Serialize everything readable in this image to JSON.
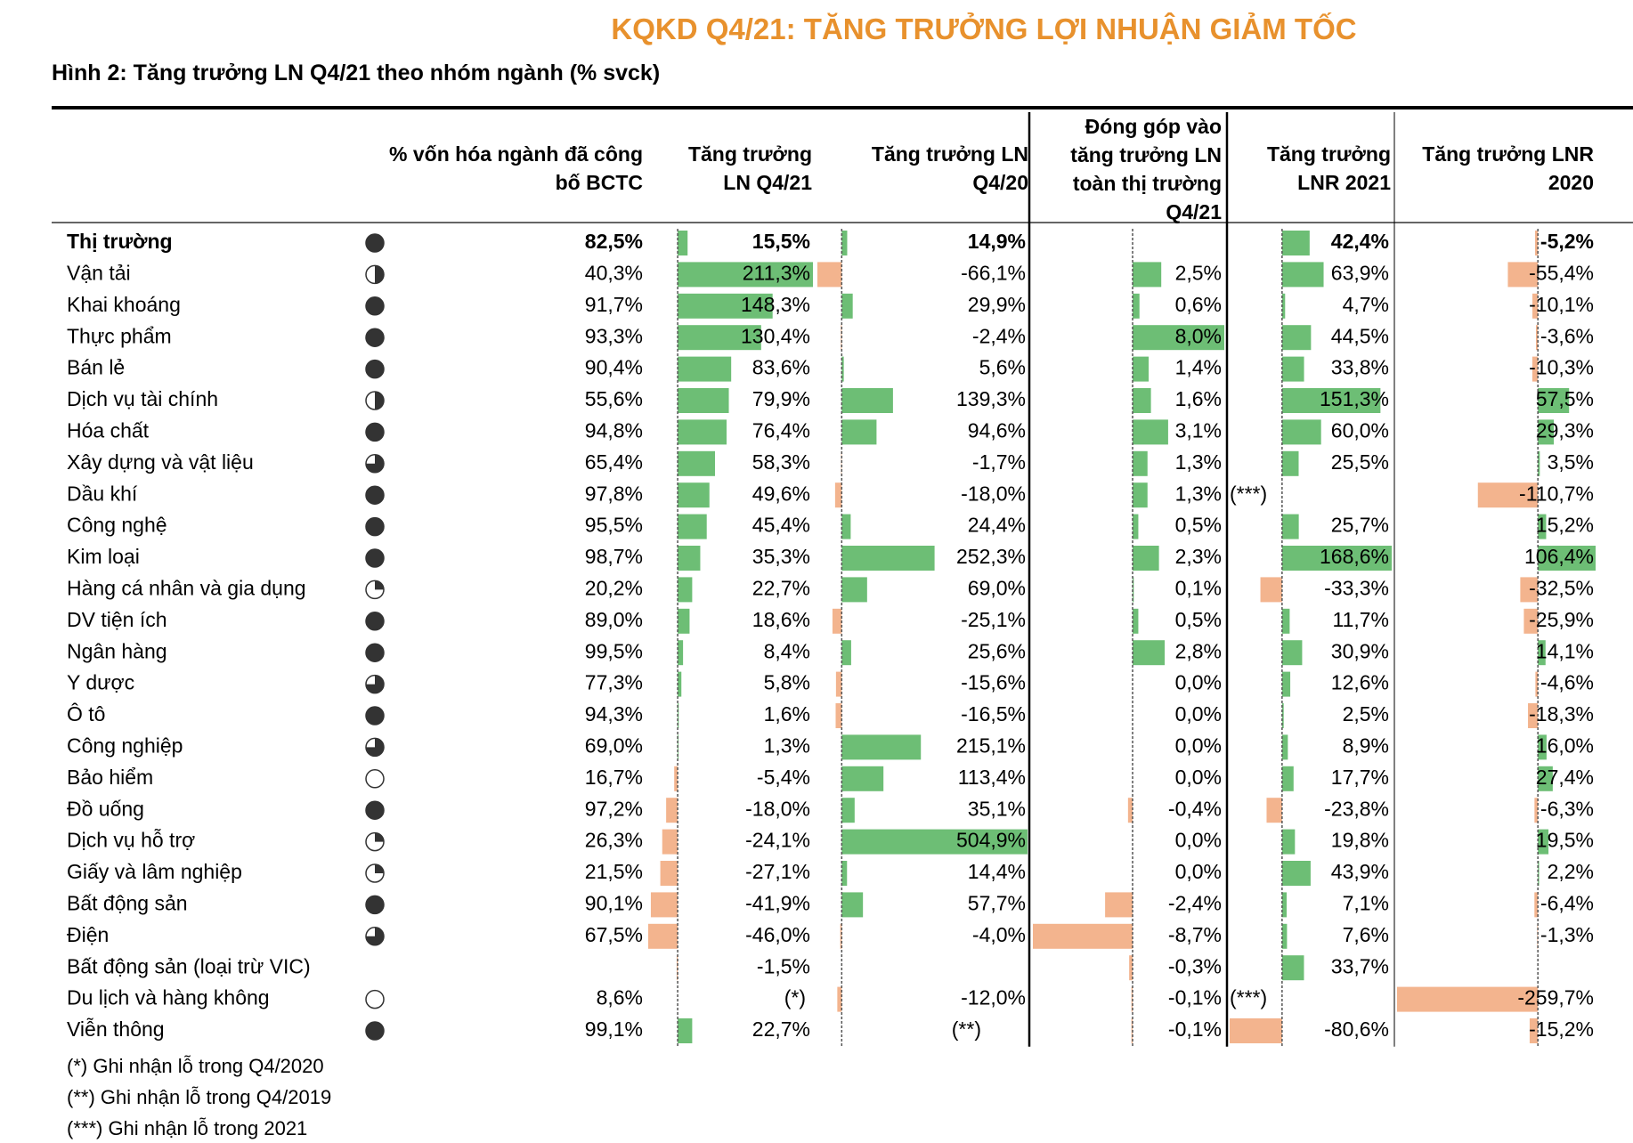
{
  "header": {
    "title": "KQKD Q4/21: TĂNG TRƯỞNG LỢI NHUẬN GIẢM TỐC",
    "subtitle": "Hình 2: Tăng trưởng LN Q4/21 theo nhóm ngành (% svck)"
  },
  "table": {
    "columns": [
      {
        "col": 1,
        "label": "% vốn hóa ngành đã công bố BCTC"
      },
      {
        "col": 2,
        "label": "Tăng trưởng LN Q4/21"
      },
      {
        "col": 3,
        "label": "Tăng trưởng LN Q4/20"
      },
      {
        "col": 4,
        "label": "Đóng góp vào tăng trưởng LN toàn thị trường Q4/21"
      },
      {
        "col": 5,
        "label": "Tăng trưởng LNR 2021"
      },
      {
        "col": 6,
        "label": "Tăng trưởng LNR 2020"
      }
    ],
    "rows": [
      [
        "Thị trường",
        {
          "value": 82.5,
          "label": "82,5%"
        },
        {
          "value": 15.5,
          "label": "15,5%"
        },
        {
          "value": 14.9,
          "label": "14,9%"
        },
        null,
        {
          "value": 42.4,
          "label": "42,4%"
        },
        {
          "value": -5.2,
          "label": "-5,2%"
        }
      ],
      [
        "Vận tải",
        {
          "value": 40.3,
          "label": "40,3%"
        },
        {
          "value": 211.3,
          "label": "211,3%"
        },
        {
          "value": -66.1,
          "label": "-66,1%"
        },
        {
          "value": 2.5,
          "label": "2,5%"
        },
        {
          "value": 63.9,
          "label": "63,9%"
        },
        {
          "value": -55.4,
          "label": "-55,4%"
        }
      ],
      [
        "Khai khoáng",
        {
          "value": 91.7,
          "label": "91,7%"
        },
        {
          "value": 148.3,
          "label": "148,3%"
        },
        {
          "value": 29.9,
          "label": "29,9%"
        },
        {
          "value": 0.6,
          "label": "0,6%"
        },
        {
          "value": 4.7,
          "label": "4,7%"
        },
        {
          "value": -10.1,
          "label": "-10,1%"
        }
      ],
      [
        "Thực phẩm",
        {
          "value": 93.3,
          "label": "93,3%"
        },
        {
          "value": 130.4,
          "label": "130,4%"
        },
        {
          "value": -2.4,
          "label": "-2,4%"
        },
        {
          "value": 8.0,
          "label": "8,0%"
        },
        {
          "value": 44.5,
          "label": "44,5%"
        },
        {
          "value": -3.6,
          "label": "-3,6%"
        }
      ],
      [
        "Bán lẻ",
        {
          "value": 90.4,
          "label": "90,4%"
        },
        {
          "value": 83.6,
          "label": "83,6%"
        },
        {
          "value": 5.6,
          "label": "5,6%"
        },
        {
          "value": 1.4,
          "label": "1,4%"
        },
        {
          "value": 33.8,
          "label": "33,8%"
        },
        {
          "value": -10.3,
          "label": "-10,3%"
        }
      ],
      [
        "Dịch vụ tài chính",
        {
          "value": 55.6,
          "label": "55,6%"
        },
        {
          "value": 79.9,
          "label": "79,9%"
        },
        {
          "value": 139.3,
          "label": "139,3%"
        },
        {
          "value": 1.6,
          "label": "1,6%"
        },
        {
          "value": 151.3,
          "label": "151,3%"
        },
        {
          "value": 57.5,
          "label": "57,5%"
        }
      ],
      [
        "Hóa chất",
        {
          "value": 94.8,
          "label": "94,8%"
        },
        {
          "value": 76.4,
          "label": "76,4%"
        },
        {
          "value": 94.6,
          "label": "94,6%"
        },
        {
          "value": 3.1,
          "label": "3,1%"
        },
        {
          "value": 60.0,
          "label": "60,0%"
        },
        {
          "value": 29.3,
          "label": "29,3%"
        }
      ],
      [
        "Xây dựng và vật liệu",
        {
          "value": 65.4,
          "label": "65,4%"
        },
        {
          "value": 58.3,
          "label": "58,3%"
        },
        {
          "value": -1.7,
          "label": "-1,7%"
        },
        {
          "value": 1.3,
          "label": "1,3%"
        },
        {
          "value": 25.5,
          "label": "25,5%"
        },
        {
          "value": 3.5,
          "label": "3,5%"
        }
      ],
      [
        "Dầu khí",
        {
          "value": 97.8,
          "label": "97,8%"
        },
        {
          "value": 49.6,
          "label": "49,6%"
        },
        {
          "value": -18.0,
          "label": "-18,0%"
        },
        {
          "value": 1.3,
          "label": "1,3%"
        },
        "(***)",
        {
          "value": -110.7,
          "label": "-110,7%"
        }
      ],
      [
        "Công nghệ",
        {
          "value": 95.5,
          "label": "95,5%"
        },
        {
          "value": 45.4,
          "label": "45,4%"
        },
        {
          "value": 24.4,
          "label": "24,4%"
        },
        {
          "value": 0.5,
          "label": "0,5%"
        },
        {
          "value": 25.7,
          "label": "25,7%"
        },
        {
          "value": 15.2,
          "label": "15,2%"
        }
      ],
      [
        "Kim loại",
        {
          "value": 98.7,
          "label": "98,7%"
        },
        {
          "value": 35.3,
          "label": "35,3%"
        },
        {
          "value": 252.3,
          "label": "252,3%"
        },
        {
          "value": 2.3,
          "label": "2,3%"
        },
        {
          "value": 168.6,
          "label": "168,6%"
        },
        {
          "value": 106.4,
          "label": "106,4%"
        }
      ],
      [
        "Hàng cá nhân và gia dụng",
        {
          "value": 20.2,
          "label": "20,2%"
        },
        {
          "value": 22.7,
          "label": "22,7%"
        },
        {
          "value": 69.0,
          "label": "69,0%"
        },
        {
          "value": 0.1,
          "label": "0,1%"
        },
        {
          "value": -33.3,
          "label": "-33,3%"
        },
        {
          "value": -32.5,
          "label": "-32,5%"
        }
      ],
      [
        "DV tiện ích",
        {
          "value": 89.0,
          "label": "89,0%"
        },
        {
          "value": 18.6,
          "label": "18,6%"
        },
        {
          "value": -25.1,
          "label": "-25,1%"
        },
        {
          "value": 0.5,
          "label": "0,5%"
        },
        {
          "value": 11.7,
          "label": "11,7%"
        },
        {
          "value": -25.9,
          "label": "-25,9%"
        }
      ],
      [
        "Ngân hàng",
        {
          "value": 99.5,
          "label": "99,5%"
        },
        {
          "value": 8.4,
          "label": "8,4%"
        },
        {
          "value": 25.6,
          "label": "25,6%"
        },
        {
          "value": 2.8,
          "label": "2,8%"
        },
        {
          "value": 30.9,
          "label": "30,9%"
        },
        {
          "value": 14.1,
          "label": "14,1%"
        }
      ],
      [
        "Y dược",
        {
          "value": 77.3,
          "label": "77,3%"
        },
        {
          "value": 5.8,
          "label": "5,8%"
        },
        {
          "value": -15.6,
          "label": "-15,6%"
        },
        {
          "value": 0.0,
          "label": "0,0%"
        },
        {
          "value": 12.6,
          "label": "12,6%"
        },
        {
          "value": -4.6,
          "label": "-4,6%"
        }
      ],
      [
        "Ô tô",
        {
          "value": 94.3,
          "label": "94,3%"
        },
        {
          "value": 1.6,
          "label": "1,6%"
        },
        {
          "value": -16.5,
          "label": "-16,5%"
        },
        {
          "value": 0.0,
          "label": "0,0%"
        },
        {
          "value": 2.5,
          "label": "2,5%"
        },
        {
          "value": -18.3,
          "label": "-18,3%"
        }
      ],
      [
        "Công nghiệp",
        {
          "value": 69.0,
          "label": "69,0%"
        },
        {
          "value": 1.3,
          "label": "1,3%"
        },
        {
          "value": 215.1,
          "label": "215,1%"
        },
        {
          "value": 0.0,
          "label": "0,0%"
        },
        {
          "value": 8.9,
          "label": "8,9%"
        },
        {
          "value": 16.0,
          "label": "16,0%"
        }
      ],
      [
        "Bảo hiểm",
        {
          "value": 16.7,
          "label": "16,7%"
        },
        {
          "value": -5.4,
          "label": "-5,4%"
        },
        {
          "value": 113.4,
          "label": "113,4%"
        },
        {
          "value": 0.0,
          "label": "0,0%"
        },
        {
          "value": 17.7,
          "label": "17,7%"
        },
        {
          "value": 27.4,
          "label": "27,4%"
        }
      ],
      [
        "Đồ uống",
        {
          "value": 97.2,
          "label": "97,2%"
        },
        {
          "value": -18.0,
          "label": "-18,0%"
        },
        {
          "value": 35.1,
          "label": "35,1%"
        },
        {
          "value": -0.4,
          "label": "-0,4%"
        },
        {
          "value": -23.8,
          "label": "-23,8%"
        },
        {
          "value": -6.3,
          "label": "-6,3%"
        }
      ],
      [
        "Dịch vụ hỗ trợ",
        {
          "value": 26.3,
          "label": "26,3%"
        },
        {
          "value": -24.1,
          "label": "-24,1%"
        },
        {
          "value": 504.9,
          "label": "504,9%"
        },
        {
          "value": 0.0,
          "label": "0,0%"
        },
        {
          "value": 19.8,
          "label": "19,8%"
        },
        {
          "value": 19.5,
          "label": "19,5%"
        }
      ],
      [
        "Giấy và lâm nghiệp",
        {
          "value": 21.5,
          "label": "21,5%"
        },
        {
          "value": -27.1,
          "label": "-27,1%"
        },
        {
          "value": 14.4,
          "label": "14,4%"
        },
        {
          "value": 0.0,
          "label": "0,0%"
        },
        {
          "value": 43.9,
          "label": "43,9%"
        },
        {
          "value": 2.2,
          "label": "2,2%"
        }
      ],
      [
        "Bất động sản",
        {
          "value": 90.1,
          "label": "90,1%"
        },
        {
          "value": -41.9,
          "label": "-41,9%"
        },
        {
          "value": 57.7,
          "label": "57,7%"
        },
        {
          "value": -2.4,
          "label": "-2,4%"
        },
        {
          "value": 7.1,
          "label": "7,1%"
        },
        {
          "value": -6.4,
          "label": "-6,4%"
        }
      ],
      [
        "Điện",
        {
          "value": 67.5,
          "label": "67,5%"
        },
        {
          "value": -46.0,
          "label": "-46,0%"
        },
        {
          "value": -4.0,
          "label": "-4,0%"
        },
        {
          "value": -8.7,
          "label": "-8,7%"
        },
        {
          "value": 7.6,
          "label": "7,6%"
        },
        {
          "value": -1.3,
          "label": "-1,3%"
        }
      ],
      [
        "Bất động sản (loại trừ VIC)",
        null,
        {
          "value": -1.5,
          "label": "-1,5%"
        },
        null,
        {
          "value": -0.3,
          "label": "-0,3%"
        },
        {
          "value": 33.7,
          "label": "33,7%"
        },
        null
      ],
      [
        "Du lịch và hàng không",
        {
          "value": 8.6,
          "label": "8,6%"
        },
        "(*)",
        {
          "value": -12.0,
          "label": "-12,0%"
        },
        {
          "value": -0.1,
          "label": "-0,1%"
        },
        "(***)",
        {
          "value": -259.7,
          "label": "-259,7%"
        }
      ],
      [
        "Viễn thông",
        {
          "value": 99.1,
          "label": "99,1%"
        },
        {
          "value": 22.7,
          "label": "22,7%"
        },
        "(**)",
        {
          "value": -0.1,
          "label": "-0,1%"
        },
        {
          "value": -80.6,
          "label": "-80,6%"
        },
        {
          "value": -15.2,
          "label": "-15,2%"
        }
      ]
    ]
  },
  "notes": [
    "(*) Ghi nhận lỗ trong Q4/2020",
    "(**) Ghi nhận lỗ trong Q4/2019",
    "(***) Ghi nhận lỗ trong 2021"
  ]
}
